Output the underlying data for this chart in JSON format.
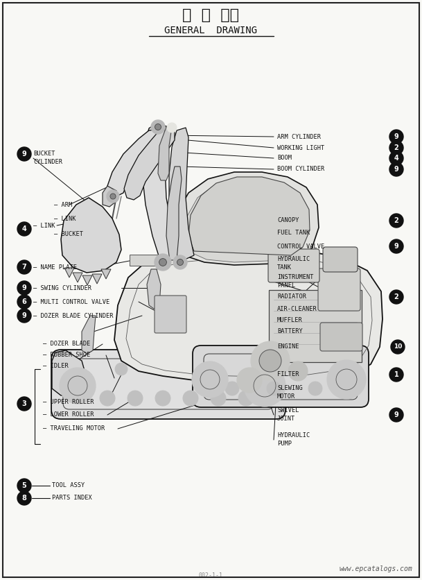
{
  "title_japanese": "全  体  図・",
  "title_english": "GENERAL  DRAWING",
  "background_color": "#f8f8f5",
  "text_color": "#111111",
  "page_label": "002-1-1",
  "watermark": "www.epcatalogs.com",
  "fig_width": 6.09,
  "fig_height": 8.36,
  "dpi": 100
}
